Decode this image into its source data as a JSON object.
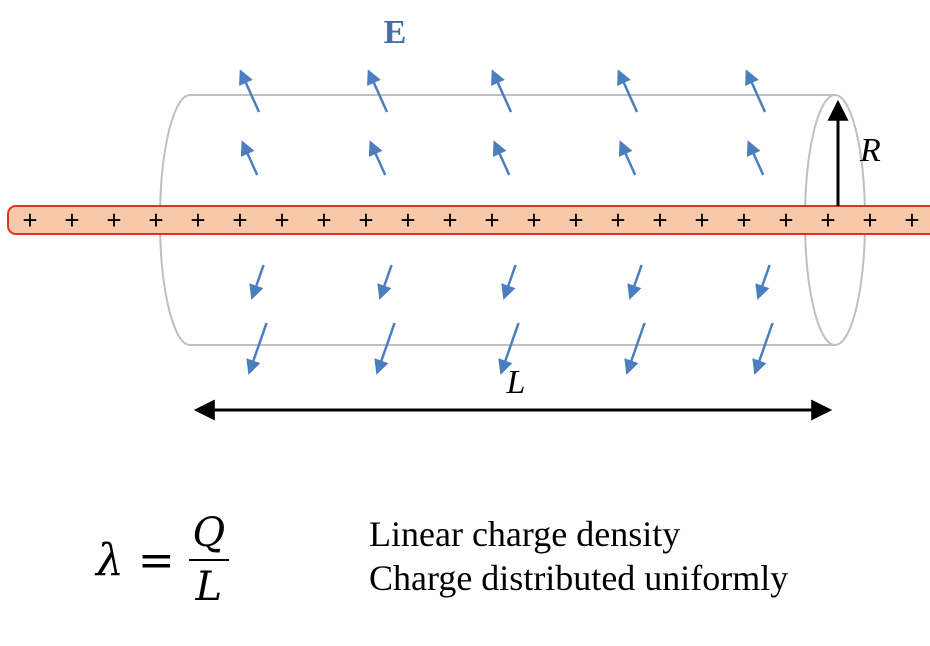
{
  "colors": {
    "field_arrow": "#4a7ebf",
    "line_fill": "#f8c9a8",
    "line_stroke": "#e0302a",
    "cylinder_stroke": "#bfbfbf",
    "label_E": "#4a6fa5"
  },
  "labels": {
    "field": "E",
    "radius": "R",
    "length": "L"
  },
  "charge_symbol": "+",
  "formula": {
    "lhs": "λ",
    "equals": "=",
    "numerator": "Q",
    "denominator": "L"
  },
  "description": {
    "line1": "Linear charge density",
    "line2": "Charge distributed uniformly"
  }
}
